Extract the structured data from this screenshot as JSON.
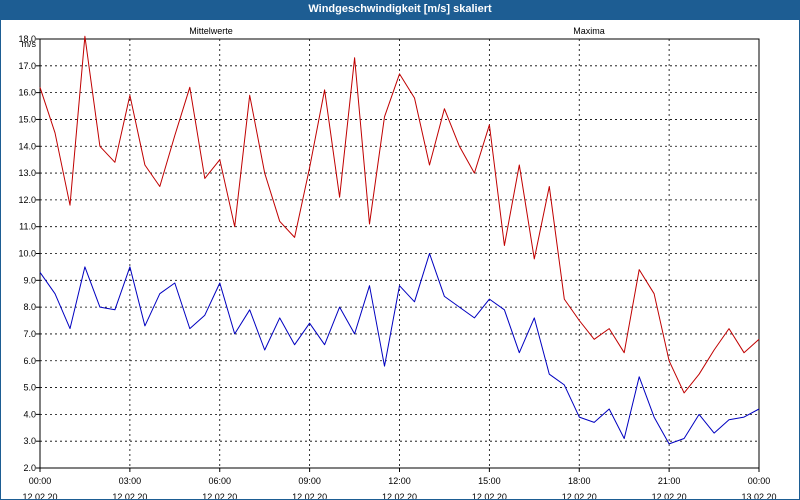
{
  "window": {
    "title": "Windgeschwindigkeit [m/s] skaliert"
  },
  "chart_data": {
    "type": "line",
    "title": "Windgeschwindigkeit [m/s] skaliert",
    "ylabel": "m/s",
    "ylim": [
      2.0,
      18.0
    ],
    "yticks": [
      "18.0",
      "17.0",
      "16.0",
      "15.0",
      "14.0",
      "13.0",
      "12.0",
      "11.0",
      "10.0",
      "9.0",
      "8.0",
      "7.0",
      "6.0",
      "5.0",
      "4.0",
      "3.0",
      "2.0"
    ],
    "xlim_hours": [
      0,
      24
    ],
    "xticks": [
      {
        "time": "00:00",
        "date": "12.02.20"
      },
      {
        "time": "03:00",
        "date": "12.02.20"
      },
      {
        "time": "06:00",
        "date": "12.02.20"
      },
      {
        "time": "09:00",
        "date": "12.02.20"
      },
      {
        "time": "12:00",
        "date": "12.02.20"
      },
      {
        "time": "15:00",
        "date": "12.02.20"
      },
      {
        "time": "18:00",
        "date": "12.02.20"
      },
      {
        "time": "21:00",
        "date": "12.02.20"
      },
      {
        "time": "00:00",
        "date": "13.02.20"
      }
    ],
    "grid": true,
    "legend_position": "top",
    "series": [
      {
        "name": "Mittelwerte",
        "color": "#0000c0",
        "x_hours": [
          0,
          0.5,
          1,
          1.5,
          2,
          2.5,
          3,
          3.5,
          4,
          4.5,
          5,
          5.5,
          6,
          6.5,
          7,
          7.5,
          8,
          8.5,
          9,
          9.5,
          10,
          10.5,
          11,
          11.5,
          12,
          12.5,
          13,
          13.5,
          14,
          14.5,
          15,
          15.5,
          16,
          16.5,
          17,
          17.5,
          18,
          18.5,
          19,
          19.5,
          20,
          20.5,
          21,
          21.5,
          22,
          22.5,
          23,
          23.5,
          24
        ],
        "values": [
          9.3,
          8.5,
          7.2,
          9.5,
          8.0,
          7.9,
          9.5,
          7.3,
          8.5,
          8.9,
          7.2,
          7.7,
          8.9,
          7.0,
          7.9,
          6.4,
          7.6,
          6.6,
          7.4,
          6.6,
          8.0,
          7.0,
          8.8,
          5.8,
          8.8,
          8.2,
          10.0,
          8.4,
          8.0,
          7.6,
          8.3,
          7.9,
          6.3,
          7.6,
          5.5,
          5.1,
          3.9,
          3.7,
          4.2,
          3.1,
          5.4,
          3.9,
          2.9,
          3.1,
          4.0,
          3.3,
          3.8,
          3.9,
          4.2
        ]
      },
      {
        "name": "Maxima",
        "color": "#c00000",
        "x_hours": [
          0,
          0.5,
          1,
          1.5,
          2,
          2.5,
          3,
          3.5,
          4,
          4.5,
          5,
          5.5,
          6,
          6.5,
          7,
          7.5,
          8,
          8.5,
          9,
          9.5,
          10,
          10.5,
          11,
          11.5,
          12,
          12.5,
          13,
          13.5,
          14,
          14.5,
          15,
          15.5,
          16,
          16.5,
          17,
          17.5,
          18,
          18.5,
          19,
          19.5,
          20,
          20.5,
          21,
          21.5,
          22,
          22.5,
          23,
          23.5,
          24
        ],
        "values": [
          16.2,
          14.5,
          11.8,
          18.1,
          14.0,
          13.4,
          15.9,
          13.3,
          12.5,
          14.4,
          16.2,
          12.8,
          13.5,
          11.0,
          15.9,
          13.0,
          11.2,
          10.6,
          13.2,
          16.1,
          12.1,
          17.3,
          11.1,
          15.1,
          16.7,
          15.8,
          13.3,
          15.4,
          14.0,
          13.0,
          14.8,
          10.3,
          13.3,
          9.8,
          12.5,
          8.3,
          7.5,
          6.8,
          7.2,
          6.3,
          9.4,
          8.5,
          6.0,
          4.8,
          5.5,
          6.4,
          7.2,
          6.3,
          6.8
        ]
      }
    ]
  }
}
